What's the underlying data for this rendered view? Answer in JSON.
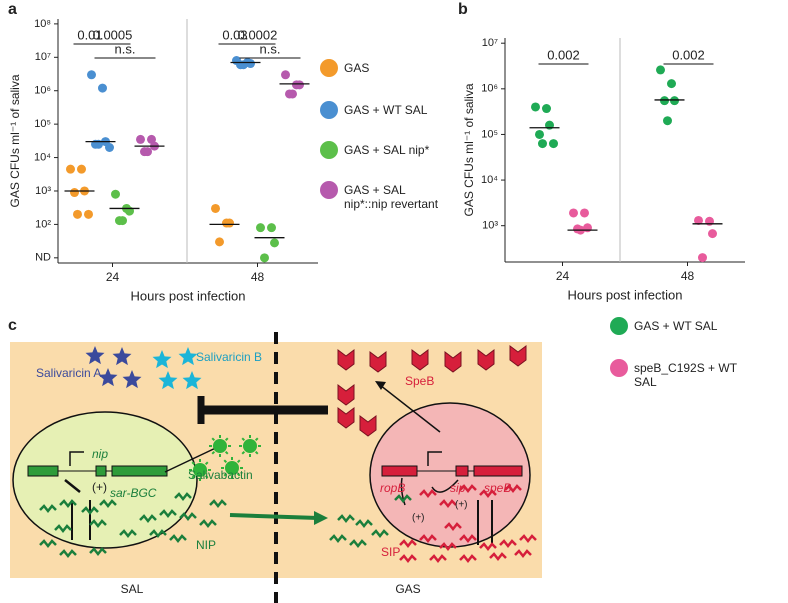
{
  "chart_data": [
    {
      "type": "scatter",
      "label": "a",
      "ylabel": "GAS CFUs ml⁻¹ of saliva",
      "xlabel": "Hours post infection",
      "log": true,
      "categories": [
        "24",
        "48"
      ],
      "ylim": [
        7,
        140000000
      ],
      "yticks": [
        {
          "value": 10,
          "label": "ND"
        },
        {
          "value": 100,
          "label": "10²"
        },
        {
          "value": 1000,
          "label": "10³"
        },
        {
          "value": 10000,
          "label": "10⁴"
        },
        {
          "value": 100000,
          "label": "10⁵"
        },
        {
          "value": 1000000,
          "label": "10⁶"
        },
        {
          "value": 10000000,
          "label": "10⁷"
        },
        {
          "value": 100000000,
          "label": "10⁸"
        }
      ],
      "series": [
        {
          "name": "GAS",
          "color": "#f39a2b",
          "values": [
            [
              4500,
              4500,
              1000,
              900,
              200,
              200
            ],
            [
              300,
              110,
              110,
              30
            ]
          ],
          "medians": [
            1000,
            100
          ]
        },
        {
          "name": "GAS + WT SAL",
          "color": "#4a8fd1",
          "values": [
            [
              3000000,
              1200000,
              30000,
              25000,
              25000,
              20000
            ],
            [
              8000000,
              7000000,
              6500000,
              6000000,
              6000000
            ]
          ],
          "medians": [
            30000,
            7000000
          ]
        },
        {
          "name": "GAS + SAL nip*",
          "color": "#5cbf4a",
          "values": [
            [
              800,
              300,
              250,
              130,
              130
            ],
            [
              80,
              80,
              28,
              10
            ]
          ],
          "medians": [
            300,
            40
          ]
        },
        {
          "name": "GAS + SAL nip*::nip revertant",
          "color": "#b65aad",
          "values": [
            [
              35000,
              35000,
              22000,
              15000,
              15000
            ],
            [
              3000000,
              1500000,
              1500000,
              800000,
              800000
            ]
          ],
          "medians": [
            22000,
            1600000
          ]
        }
      ],
      "annotations": [
        "0.01",
        "0.0005",
        "n.s.",
        "0.03",
        "0.0002",
        "n.s."
      ]
    },
    {
      "type": "scatter",
      "label": "b",
      "ylabel": "GAS CFUs ml⁻¹ of saliva",
      "xlabel": "Hours post infection",
      "log": true,
      "categories": [
        "24",
        "48"
      ],
      "ylim": [
        160,
        13000000
      ],
      "yticks": [
        {
          "value": 1000,
          "label": "10³"
        },
        {
          "value": 10000,
          "label": "10⁴"
        },
        {
          "value": 100000,
          "label": "10⁵"
        },
        {
          "value": 1000000,
          "label": "10⁶"
        },
        {
          "value": 10000000,
          "label": "10⁷"
        }
      ],
      "series": [
        {
          "name": "GAS + WT SAL",
          "color": "#1faa55",
          "values": [
            [
              400000,
              370000,
              160000,
              100000,
              63000,
              63000
            ],
            [
              2600000,
              1300000,
              550000,
              550000,
              200000
            ]
          ],
          "medians": [
            140000,
            570000
          ]
        },
        {
          "name": "speB_C192S + WT SAL",
          "color": "#e85b9c",
          "values": [
            [
              1900,
              1900,
              900,
              850,
              800
            ],
            [
              1300,
              1250,
              670,
              200
            ]
          ],
          "medians": [
            800,
            1100
          ]
        }
      ],
      "annotations": [
        "0.002",
        "0.002"
      ]
    }
  ],
  "diagram": {
    "label": "c",
    "salivaricin_a": "Salivaricin A",
    "salivaricin_b": "Salivaricin B",
    "nip": "nip",
    "sar_bgc": "sar-BGC",
    "plus_sal": "(+)",
    "salivabactin": "Salivabactin",
    "nip_peptide": "NIP",
    "sal": "SAL",
    "speb_protein": "SpeB",
    "ropb": "ropB",
    "sip": "sip",
    "speb_gene": "speB",
    "plus_gas1": "(+)",
    "plus_gas2": "(+)",
    "sip_peptide": "SIP",
    "gas": "GAS"
  }
}
